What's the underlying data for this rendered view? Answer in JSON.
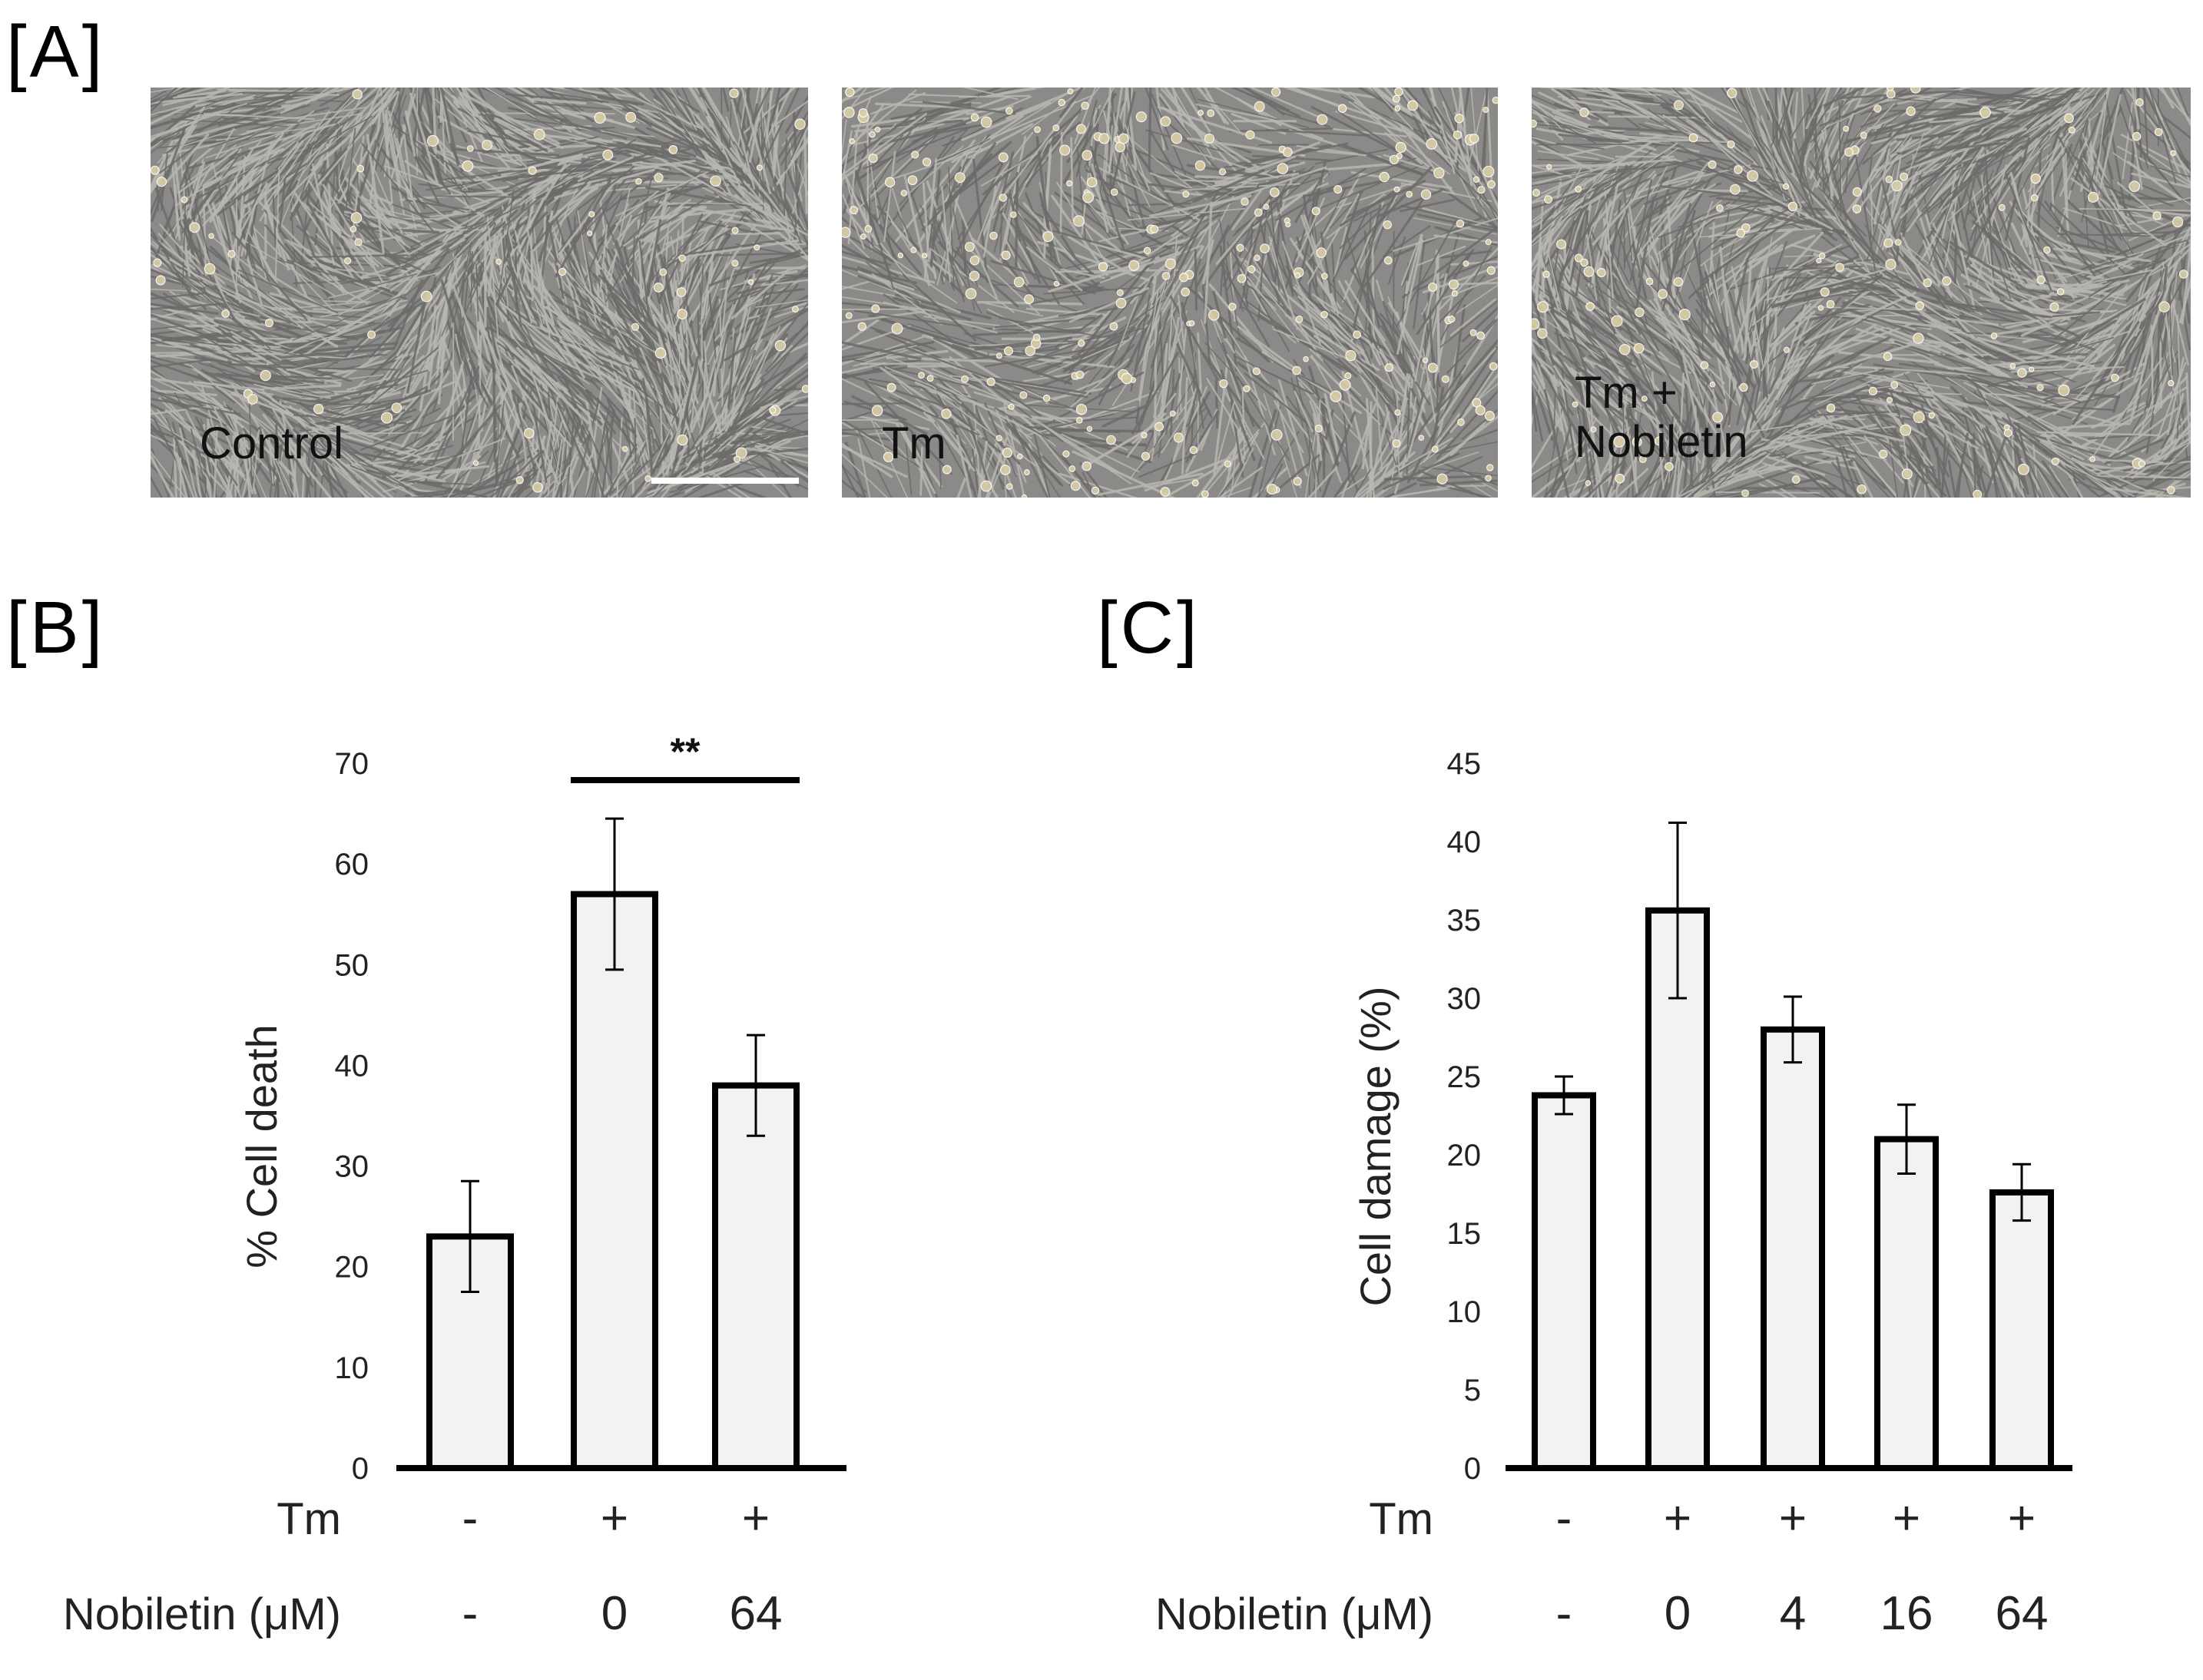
{
  "figure": {
    "panel_a": {
      "label": "[A]",
      "images": [
        {
          "caption_lines": [
            "Control"
          ],
          "scale_bar": true
        },
        {
          "caption_lines": [
            "Tm"
          ],
          "scale_bar": false
        },
        {
          "caption_lines": [
            "Tm +",
            "Nobiletin"
          ],
          "scale_bar": false
        }
      ]
    },
    "panel_b": {
      "label": "[B]"
    },
    "panel_c": {
      "label": "[C]"
    }
  },
  "chart_data": [
    {
      "type": "bar",
      "panel": "B",
      "ylabel": "% Cell death",
      "ylim": [
        0,
        70
      ],
      "yticks": [
        0,
        10,
        20,
        30,
        40,
        50,
        60,
        70
      ],
      "row_labels": [
        "Tm",
        "Nobiletin (μM)"
      ],
      "rows": [
        [
          "-",
          "+",
          "+"
        ],
        [
          "-",
          "0",
          "64"
        ]
      ],
      "values": [
        23,
        57,
        38
      ],
      "errors": [
        5.5,
        7.5,
        5
      ],
      "bar_color": "#f2f2f2",
      "significance": [
        {
          "from": 1,
          "to": 2,
          "label": "**"
        }
      ]
    },
    {
      "type": "bar",
      "panel": "C",
      "ylabel": "Cell damage (%)",
      "ylim": [
        0,
        45
      ],
      "yticks": [
        0,
        5,
        10,
        15,
        20,
        25,
        30,
        35,
        40,
        45
      ],
      "row_labels": [
        "Tm",
        "Nobiletin (μM)"
      ],
      "rows": [
        [
          "-",
          "+",
          "+",
          "+",
          "+"
        ],
        [
          "-",
          "0",
          "4",
          "16",
          "64"
        ]
      ],
      "values": [
        23.8,
        35.6,
        28,
        21,
        17.6
      ],
      "errors": [
        1.2,
        5.6,
        2.1,
        2.2,
        1.8
      ],
      "bar_color": "#f2f2f2"
    }
  ]
}
